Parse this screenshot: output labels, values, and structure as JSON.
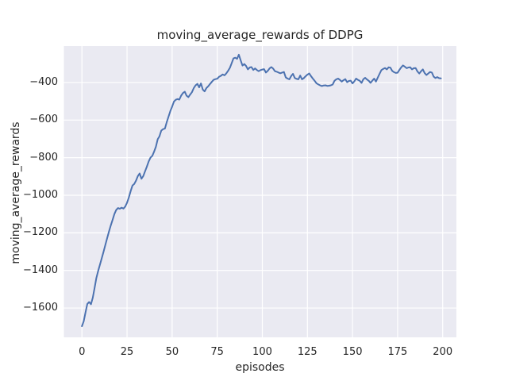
{
  "figure": {
    "background": "#ffffff"
  },
  "chart_data": {
    "type": "line",
    "title": "moving_average_rewards of DDPG",
    "xlabel": "episodes",
    "ylabel": "moving_average_rewards",
    "grid": true,
    "legend_visible": false,
    "plot_background": "#eaeaf2",
    "grid_color": "#ffffff",
    "line_color": "#4c72b0",
    "xlim": [
      -10,
      207.6
    ],
    "ylim": [
      -1756,
      -206
    ],
    "x_ticks": [
      {
        "value": 0,
        "label": "0"
      },
      {
        "value": 25,
        "label": "25"
      },
      {
        "value": 50,
        "label": "50"
      },
      {
        "value": 75,
        "label": "75"
      },
      {
        "value": 100,
        "label": "100"
      },
      {
        "value": 125,
        "label": "125"
      },
      {
        "value": 150,
        "label": "150"
      },
      {
        "value": 175,
        "label": "175"
      },
      {
        "value": 200,
        "label": "200"
      }
    ],
    "y_ticks": [
      {
        "value": -400,
        "label": "−400"
      },
      {
        "value": -600,
        "label": "−600"
      },
      {
        "value": -800,
        "label": "−800"
      },
      {
        "value": -1000,
        "label": "−1000"
      },
      {
        "value": -1200,
        "label": "−1200"
      },
      {
        "value": -1400,
        "label": "−1400"
      },
      {
        "value": -1600,
        "label": "−1600"
      }
    ],
    "series": [
      {
        "name": "moving_average_rewards",
        "color": "#4c72b0",
        "points": [
          [
            0,
            -1697
          ],
          [
            1,
            -1670
          ],
          [
            2,
            -1622
          ],
          [
            3,
            -1578
          ],
          [
            4,
            -1568
          ],
          [
            5,
            -1580
          ],
          [
            6,
            -1545
          ],
          [
            7,
            -1495
          ],
          [
            8,
            -1440
          ],
          [
            9,
            -1402
          ],
          [
            10,
            -1368
          ],
          [
            11,
            -1335
          ],
          [
            12,
            -1300
          ],
          [
            13,
            -1263
          ],
          [
            14,
            -1228
          ],
          [
            15,
            -1193
          ],
          [
            16,
            -1160
          ],
          [
            17,
            -1130
          ],
          [
            18,
            -1100
          ],
          [
            19,
            -1078
          ],
          [
            20,
            -1068
          ],
          [
            21,
            -1072
          ],
          [
            22,
            -1066
          ],
          [
            23,
            -1071
          ],
          [
            24,
            -1060
          ],
          [
            25,
            -1040
          ],
          [
            26,
            -1012
          ],
          [
            27,
            -978
          ],
          [
            28,
            -948
          ],
          [
            29,
            -940
          ],
          [
            30,
            -922
          ],
          [
            31,
            -898
          ],
          [
            32,
            -884
          ],
          [
            33,
            -912
          ],
          [
            34,
            -898
          ],
          [
            35,
            -872
          ],
          [
            36,
            -848
          ],
          [
            37,
            -820
          ],
          [
            38,
            -800
          ],
          [
            39,
            -790
          ],
          [
            40,
            -768
          ],
          [
            41,
            -742
          ],
          [
            42,
            -702
          ],
          [
            43,
            -686
          ],
          [
            44,
            -656
          ],
          [
            45,
            -648
          ],
          [
            46,
            -645
          ],
          [
            47,
            -612
          ],
          [
            48,
            -582
          ],
          [
            49,
            -552
          ],
          [
            50,
            -528
          ],
          [
            51,
            -502
          ],
          [
            52,
            -492
          ],
          [
            53,
            -488
          ],
          [
            54,
            -491
          ],
          [
            55,
            -470
          ],
          [
            56,
            -456
          ],
          [
            57,
            -449
          ],
          [
            58,
            -470
          ],
          [
            59,
            -478
          ],
          [
            60,
            -464
          ],
          [
            61,
            -452
          ],
          [
            62,
            -430
          ],
          [
            63,
            -415
          ],
          [
            64,
            -407
          ],
          [
            65,
            -426
          ],
          [
            66,
            -405
          ],
          [
            67,
            -438
          ],
          [
            68,
            -447
          ],
          [
            69,
            -430
          ],
          [
            70,
            -420
          ],
          [
            71,
            -408
          ],
          [
            72,
            -397
          ],
          [
            73,
            -386
          ],
          [
            74,
            -382
          ],
          [
            75,
            -380
          ],
          [
            76,
            -370
          ],
          [
            77,
            -365
          ],
          [
            78,
            -357
          ],
          [
            79,
            -362
          ],
          [
            80,
            -352
          ],
          [
            81,
            -338
          ],
          [
            82,
            -322
          ],
          [
            83,
            -298
          ],
          [
            84,
            -272
          ],
          [
            85,
            -268
          ],
          [
            86,
            -274
          ],
          [
            87,
            -252
          ],
          [
            88,
            -282
          ],
          [
            89,
            -310
          ],
          [
            90,
            -302
          ],
          [
            91,
            -312
          ],
          [
            92,
            -330
          ],
          [
            93,
            -320
          ],
          [
            94,
            -318
          ],
          [
            95,
            -333
          ],
          [
            96,
            -325
          ],
          [
            97,
            -334
          ],
          [
            98,
            -340
          ],
          [
            99,
            -334
          ],
          [
            100,
            -331
          ],
          [
            101,
            -329
          ],
          [
            102,
            -347
          ],
          [
            103,
            -338
          ],
          [
            104,
            -325
          ],
          [
            105,
            -318
          ],
          [
            106,
            -326
          ],
          [
            107,
            -340
          ],
          [
            108,
            -343
          ],
          [
            109,
            -347
          ],
          [
            110,
            -351
          ],
          [
            111,
            -347
          ],
          [
            112,
            -344
          ],
          [
            113,
            -373
          ],
          [
            114,
            -379
          ],
          [
            115,
            -383
          ],
          [
            116,
            -366
          ],
          [
            117,
            -354
          ],
          [
            118,
            -376
          ],
          [
            119,
            -381
          ],
          [
            120,
            -383
          ],
          [
            121,
            -363
          ],
          [
            122,
            -383
          ],
          [
            123,
            -377
          ],
          [
            124,
            -367
          ],
          [
            125,
            -358
          ],
          [
            126,
            -352
          ],
          [
            127,
            -366
          ],
          [
            128,
            -379
          ],
          [
            129,
            -391
          ],
          [
            130,
            -404
          ],
          [
            131,
            -410
          ],
          [
            132,
            -415
          ],
          [
            133,
            -419
          ],
          [
            134,
            -416
          ],
          [
            135,
            -415
          ],
          [
            136,
            -418
          ],
          [
            137,
            -417
          ],
          [
            138,
            -415
          ],
          [
            139,
            -411
          ],
          [
            140,
            -391
          ],
          [
            141,
            -383
          ],
          [
            142,
            -379
          ],
          [
            143,
            -386
          ],
          [
            144,
            -395
          ],
          [
            145,
            -388
          ],
          [
            146,
            -382
          ],
          [
            147,
            -398
          ],
          [
            148,
            -392
          ],
          [
            149,
            -390
          ],
          [
            150,
            -405
          ],
          [
            151,
            -394
          ],
          [
            152,
            -379
          ],
          [
            153,
            -386
          ],
          [
            154,
            -391
          ],
          [
            155,
            -402
          ],
          [
            156,
            -383
          ],
          [
            157,
            -375
          ],
          [
            158,
            -384
          ],
          [
            159,
            -391
          ],
          [
            160,
            -402
          ],
          [
            161,
            -390
          ],
          [
            162,
            -379
          ],
          [
            163,
            -395
          ],
          [
            164,
            -374
          ],
          [
            165,
            -354
          ],
          [
            166,
            -334
          ],
          [
            167,
            -328
          ],
          [
            168,
            -323
          ],
          [
            169,
            -330
          ],
          [
            170,
            -319
          ],
          [
            171,
            -321
          ],
          [
            172,
            -338
          ],
          [
            173,
            -345
          ],
          [
            174,
            -349
          ],
          [
            175,
            -348
          ],
          [
            176,
            -333
          ],
          [
            177,
            -319
          ],
          [
            178,
            -309
          ],
          [
            179,
            -316
          ],
          [
            180,
            -324
          ],
          [
            181,
            -320
          ],
          [
            182,
            -319
          ],
          [
            183,
            -330
          ],
          [
            184,
            -324
          ],
          [
            185,
            -323
          ],
          [
            186,
            -341
          ],
          [
            187,
            -352
          ],
          [
            188,
            -340
          ],
          [
            189,
            -330
          ],
          [
            190,
            -350
          ],
          [
            191,
            -360
          ],
          [
            192,
            -352
          ],
          [
            193,
            -344
          ],
          [
            194,
            -347
          ],
          [
            195,
            -369
          ],
          [
            196,
            -376
          ],
          [
            197,
            -371
          ],
          [
            198,
            -377
          ],
          [
            199,
            -378
          ]
        ]
      }
    ]
  }
}
